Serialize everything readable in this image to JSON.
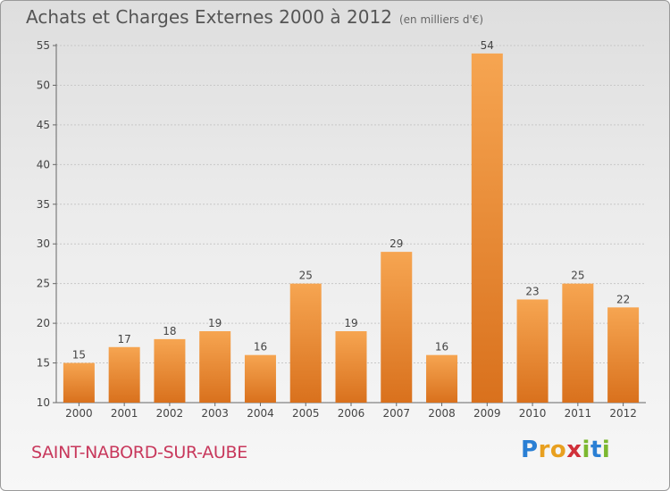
{
  "header": {
    "title": "Achats et Charges Externes 2000 à 2012",
    "unit": "(en milliers d'€)"
  },
  "footer": {
    "commune": "SAINT-NABORD-SUR-AUBE",
    "logo": {
      "letters": [
        "P",
        "r",
        "o",
        "x",
        "i",
        "t",
        "i"
      ],
      "colors": [
        "#2a7fd4",
        "#e8a020",
        "#e8a020",
        "#d0303a",
        "#7cb830",
        "#2a7fd4",
        "#7cb830"
      ]
    }
  },
  "colors": {
    "bar_light": "#f6a551",
    "bar_dark": "#d9711d",
    "grid": "#c8c8c8",
    "text": "#444444"
  },
  "chart_data": {
    "type": "bar",
    "categories": [
      "2000",
      "2001",
      "2002",
      "2003",
      "2004",
      "2005",
      "2006",
      "2007",
      "2008",
      "2009",
      "2010",
      "2011",
      "2012"
    ],
    "values": [
      15,
      17,
      18,
      19,
      16,
      25,
      19,
      29,
      16,
      54,
      23,
      25,
      22
    ],
    "data_labels": [
      "15",
      "17",
      "18",
      "19",
      "16",
      "25",
      "19",
      "29",
      "16",
      "54",
      "23",
      "25",
      "22"
    ],
    "title": "Achats et Charges Externes 2000 à 2012",
    "ylim": [
      10,
      55
    ],
    "yticks": [
      10,
      15,
      20,
      25,
      30,
      35,
      40,
      45,
      50,
      55
    ],
    "grid": true
  }
}
